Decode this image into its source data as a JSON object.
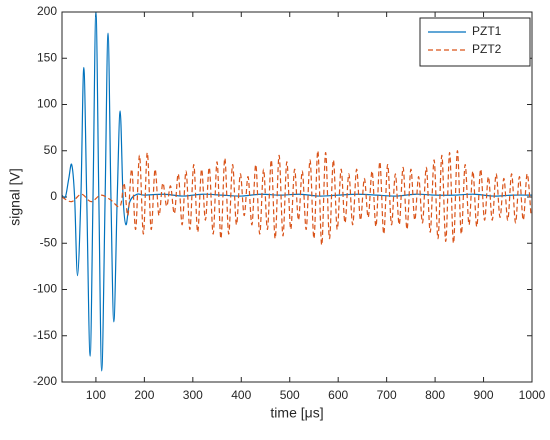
{
  "chart_data": {
    "type": "line",
    "xlabel": "time  [μs]",
    "ylabel": "signal  [V]",
    "xlim": [
      30,
      1000
    ],
    "ylim": [
      -200,
      200
    ],
    "xticks": [
      100,
      200,
      300,
      400,
      500,
      600,
      700,
      800,
      900,
      1000
    ],
    "yticks": [
      -200,
      -150,
      -100,
      -50,
      0,
      50,
      100,
      150,
      200
    ],
    "legend": "northeast",
    "series": [
      {
        "name": "PZT1",
        "color": "#0072bd",
        "dash": false,
        "x": [
          30,
          37,
          44,
          50,
          56,
          62,
          69,
          75,
          81,
          88,
          94,
          100,
          106,
          112,
          119,
          125,
          131,
          137,
          144,
          150,
          156,
          162,
          170,
          185,
          200,
          240,
          280,
          320,
          360,
          400,
          440,
          480,
          520,
          560,
          600,
          640,
          680,
          720,
          760,
          800,
          840,
          880,
          920,
          960,
          1000
        ],
        "values": [
          2,
          0,
          20,
          35,
          0,
          -85,
          0,
          140,
          0,
          -172,
          0,
          200,
          0,
          -188,
          0,
          177,
          0,
          -135,
          0,
          93,
          0,
          -30,
          -5,
          3,
          2,
          3,
          1,
          3,
          2,
          1,
          3,
          2,
          3,
          1,
          2,
          3,
          2,
          1,
          3,
          2,
          2,
          3,
          1,
          2,
          2
        ]
      },
      {
        "name": "PZT2",
        "color": "#d95319",
        "dash": true,
        "x": [
          30,
          50,
          70,
          90,
          110,
          130,
          150,
          158,
          166,
          174,
          182,
          190,
          198,
          206,
          214,
          222,
          230,
          238,
          246,
          254,
          262,
          270,
          278,
          286,
          294,
          302,
          310,
          318,
          326,
          334,
          342,
          350,
          358,
          366,
          374,
          382,
          390,
          398,
          406,
          414,
          422,
          430,
          438,
          446,
          454,
          462,
          470,
          478,
          486,
          494,
          502,
          510,
          518,
          526,
          534,
          542,
          550,
          558,
          566,
          574,
          582,
          590,
          598,
          606,
          614,
          622,
          630,
          638,
          646,
          654,
          662,
          670,
          678,
          686,
          694,
          702,
          710,
          718,
          726,
          734,
          742,
          750,
          758,
          766,
          774,
          782,
          790,
          798,
          806,
          814,
          822,
          830,
          838,
          846,
          854,
          862,
          870,
          878,
          886,
          894,
          902,
          910,
          918,
          926,
          934,
          942,
          950,
          958,
          966,
          974,
          982,
          990,
          998
        ],
        "values": [
          0,
          -5,
          3,
          -5,
          2,
          -3,
          -10,
          15,
          -20,
          30,
          -35,
          45,
          -40,
          48,
          -35,
          30,
          -20,
          15,
          -10,
          12,
          -18,
          25,
          -30,
          28,
          -35,
          35,
          -38,
          30,
          -25,
          32,
          -40,
          38,
          -45,
          42,
          -40,
          35,
          -30,
          25,
          -20,
          22,
          -30,
          35,
          -40,
          30,
          -35,
          40,
          -45,
          45,
          -42,
          38,
          -35,
          30,
          -25,
          28,
          -35,
          40,
          -45,
          50,
          -52,
          48,
          -45,
          40,
          -35,
          30,
          -28,
          25,
          -30,
          30,
          -25,
          20,
          -22,
          28,
          -32,
          38,
          -40,
          35,
          -30,
          25,
          -30,
          32,
          -35,
          30,
          -25,
          22,
          -28,
          32,
          -38,
          40,
          -45,
          45,
          -48,
          48,
          -50,
          50,
          -40,
          35,
          -30,
          28,
          -32,
          30,
          -25,
          22,
          -25,
          25,
          -22,
          20,
          -25,
          25,
          -28,
          22,
          -25,
          25,
          -20
        ]
      }
    ]
  }
}
